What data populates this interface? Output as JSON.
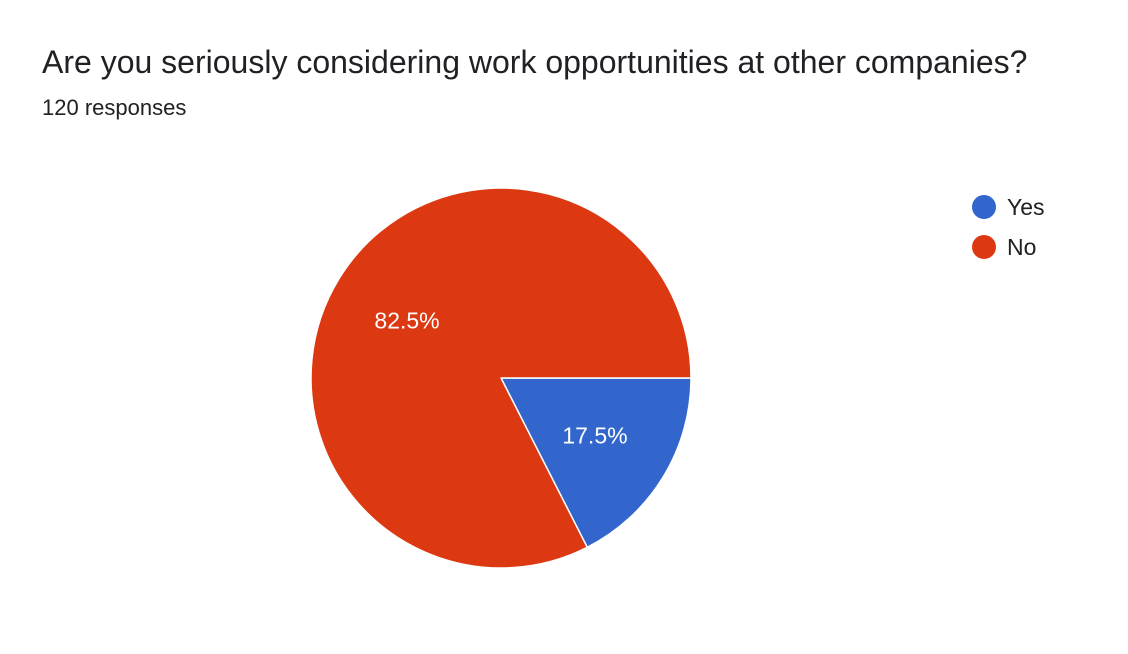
{
  "header": {
    "question": "Are you seriously considering work opportunities at other companies?",
    "responses": "120 responses"
  },
  "chart_data": {
    "type": "pie",
    "categories": [
      "Yes",
      "No"
    ],
    "values": [
      17.5,
      82.5
    ],
    "labels": [
      "17.5%",
      "82.5%"
    ],
    "colors": [
      "#3366cc",
      "#dc3912"
    ],
    "legend_position": "right",
    "start": "3 o'clock, clockwise"
  }
}
